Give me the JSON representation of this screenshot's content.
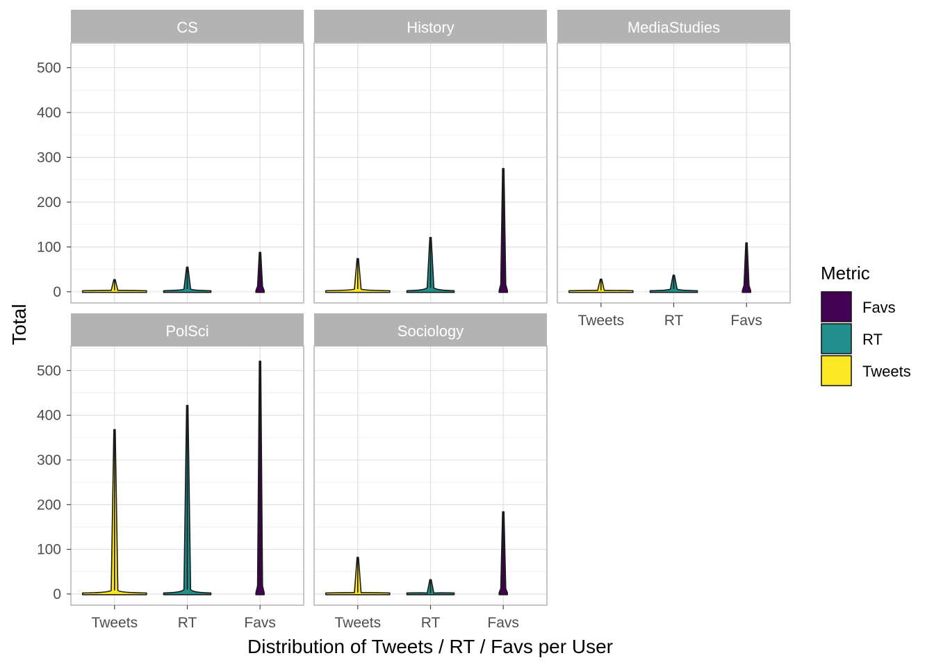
{
  "chart_data": {
    "type": "violin",
    "xlabel": "Distribution of Tweets / RT / Favs per User",
    "ylabel": "Total",
    "categories": [
      "Tweets",
      "RT",
      "Favs"
    ],
    "y_ticks": [
      0,
      100,
      200,
      300,
      400,
      500
    ],
    "ylim": [
      -25,
      555
    ],
    "grid": true,
    "legend": {
      "title": "Metric",
      "position": "right",
      "entries": [
        {
          "label": "Favs",
          "color": "#440154"
        },
        {
          "label": "RT",
          "color": "#21908C"
        },
        {
          "label": "Tweets",
          "color": "#FDE725"
        }
      ]
    },
    "panels": [
      {
        "name": "CS",
        "series": [
          {
            "metric": "Tweets",
            "max": 27,
            "body": 3
          },
          {
            "metric": "RT",
            "max": 55,
            "body": 6
          },
          {
            "metric": "Favs",
            "max": 88,
            "body": 12
          }
        ]
      },
      {
        "name": "History",
        "series": [
          {
            "metric": "Tweets",
            "max": 74,
            "body": 6
          },
          {
            "metric": "RT",
            "max": 121,
            "body": 9
          },
          {
            "metric": "Favs",
            "max": 275,
            "body": 16
          }
        ]
      },
      {
        "name": "MediaStudies",
        "series": [
          {
            "metric": "Tweets",
            "max": 28,
            "body": 3
          },
          {
            "metric": "RT",
            "max": 37,
            "body": 6
          },
          {
            "metric": "Favs",
            "max": 109,
            "body": 14
          }
        ]
      },
      {
        "name": "PolSci",
        "series": [
          {
            "metric": "Tweets",
            "max": 368,
            "body": 8
          },
          {
            "metric": "RT",
            "max": 422,
            "body": 10
          },
          {
            "metric": "Favs",
            "max": 521,
            "body": 18
          }
        ]
      },
      {
        "name": "Sociology",
        "series": [
          {
            "metric": "Tweets",
            "max": 82,
            "body": 3
          },
          {
            "metric": "RT",
            "max": 32,
            "body": 2
          },
          {
            "metric": "Favs",
            "max": 184,
            "body": 12
          }
        ]
      }
    ]
  }
}
